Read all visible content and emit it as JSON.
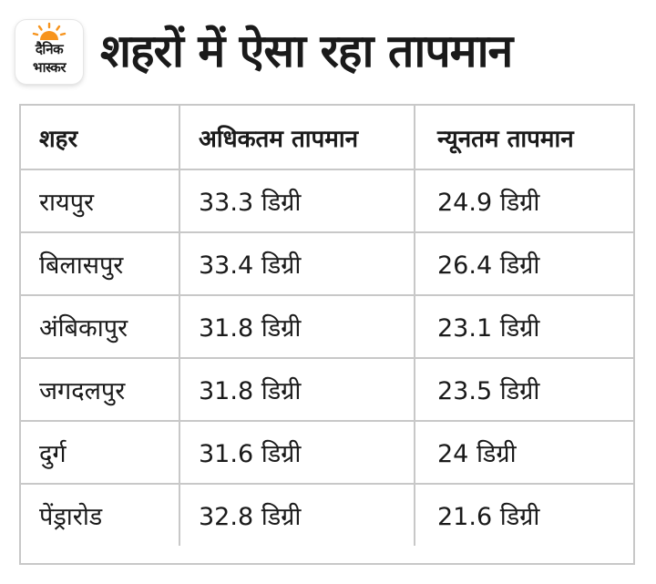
{
  "logo": {
    "line1": "दैनिक",
    "line2": "भास्कर",
    "accent_color": "#f7941d"
  },
  "title": "शहरों में ऐसा रहा तापमान",
  "table": {
    "headers": [
      "शहर",
      "अधिकतम तापमान",
      "न्यूनतम तापमान"
    ],
    "rows": [
      [
        "रायपुर",
        "33.3 डिग्री",
        "24.9 डिग्री"
      ],
      [
        "बिलासपुर",
        "33.4 डिग्री",
        "26.4 डिग्री"
      ],
      [
        "अंबिकापुर",
        "31.8 डिग्री",
        "23.1 डिग्री"
      ],
      [
        "जगदलपुर",
        "31.8 डिग्री",
        "23.5 डिग्री"
      ],
      [
        "दुर्ग",
        "31.6 डिग्री",
        "24 डिग्री"
      ],
      [
        "पेंड्रारोड",
        "32.8 डिग्री",
        "21.6 डिग्री"
      ]
    ]
  }
}
